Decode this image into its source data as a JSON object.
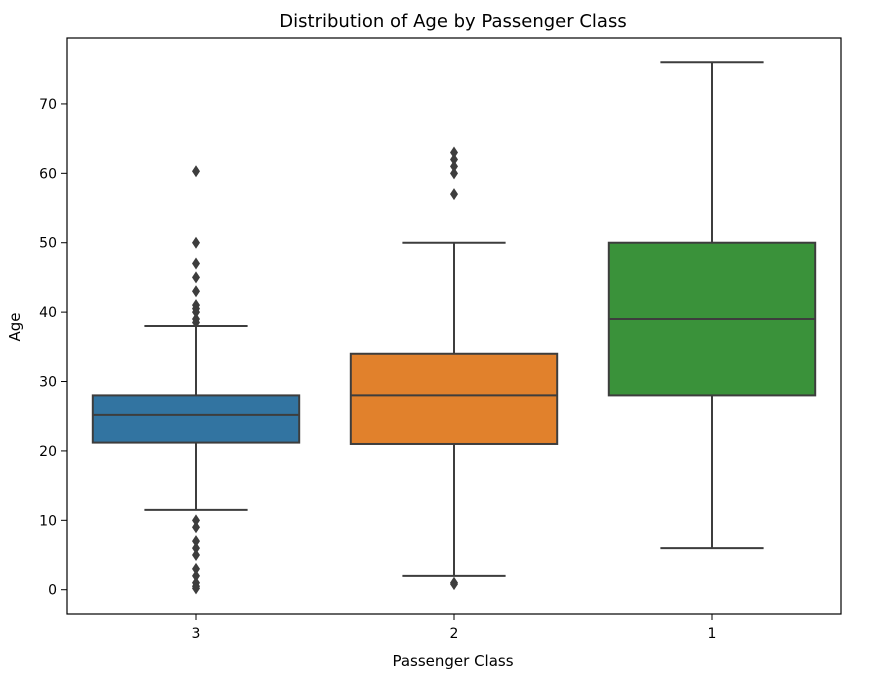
{
  "chart_data": {
    "type": "box",
    "title": "Distribution of Age by Passenger Class",
    "xlabel": "Passenger Class",
    "ylabel": "Age",
    "ylim": [
      -3.5,
      79.5
    ],
    "yticks": [
      0,
      10,
      20,
      30,
      40,
      50,
      60,
      70
    ],
    "grid": false,
    "legend": "none",
    "categories": [
      "3",
      "2",
      "1"
    ],
    "boxes": [
      {
        "category": "3",
        "color": "#3274a1",
        "whisker_low": 11.5,
        "q1": 21.2,
        "median": 25.2,
        "q3": 28,
        "whisker_high": 38,
        "outliers": [
          60.3,
          50,
          47,
          45,
          43,
          41,
          40.5,
          40,
          39,
          38.5,
          10,
          9,
          7,
          6,
          5,
          3,
          2,
          1,
          0.5,
          0.2
        ]
      },
      {
        "category": "2",
        "color": "#e1812c",
        "whisker_low": 2,
        "q1": 21,
        "median": 28,
        "q3": 34,
        "whisker_high": 50,
        "outliers": [
          63,
          62,
          61,
          60,
          57,
          1,
          0.8
        ]
      },
      {
        "category": "1",
        "color": "#3a923a",
        "whisker_low": 6,
        "q1": 28,
        "median": 39,
        "q3": 50,
        "whisker_high": 76,
        "outliers": []
      }
    ]
  }
}
